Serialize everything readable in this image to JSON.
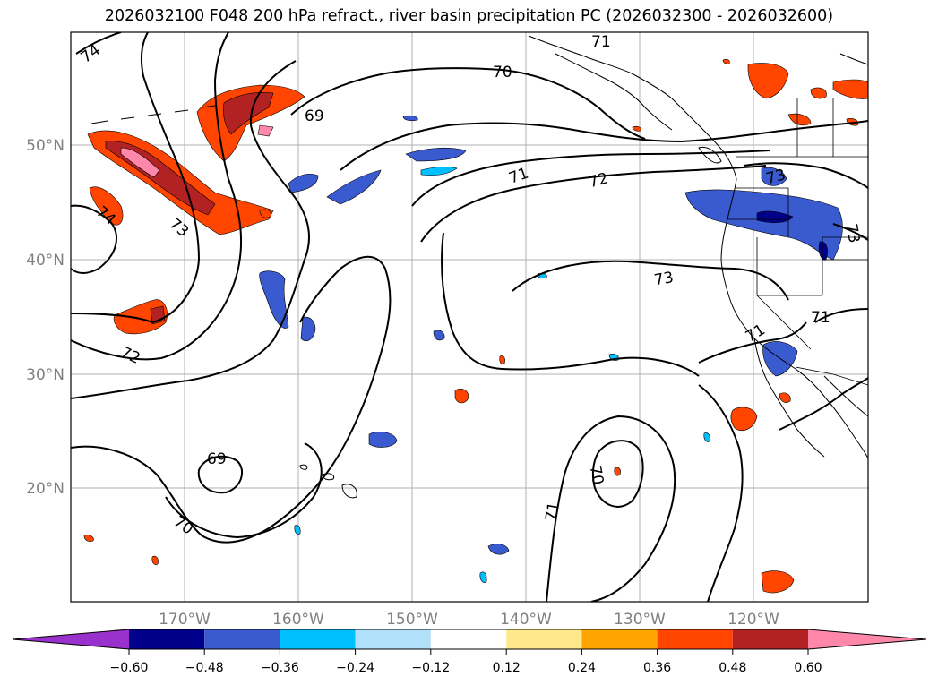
{
  "title": "2026032100 F048 200 hPa refract., river basin precipitation PC (2026032300 - 2026032600)",
  "lat_labels": [
    "50°N",
    "40°N",
    "30°N",
    "20°N"
  ],
  "lon_labels": [
    "170°W",
    "160°W",
    "150°W",
    "140°W",
    "130°W",
    "120°W"
  ],
  "contour_labels": [
    "74",
    "74",
    "73",
    "72",
    "71",
    "70",
    "69",
    "69",
    "70",
    "71",
    "72",
    "73",
    "73",
    "73",
    "71",
    "71",
    "70",
    "71"
  ],
  "colorbar": {
    "ticks": [
      "−0.60",
      "−0.48",
      "−0.36",
      "−0.24",
      "−0.12",
      "0.12",
      "0.24",
      "0.36",
      "0.48",
      "0.60"
    ],
    "colors": [
      "#9932cc",
      "#00008b",
      "#3a5bd0",
      "#00bfff",
      "#b0e0fa",
      "#ffffff",
      "#ffe98c",
      "#ffa500",
      "#ff4500",
      "#b22222",
      "#ff88aa"
    ]
  }
}
